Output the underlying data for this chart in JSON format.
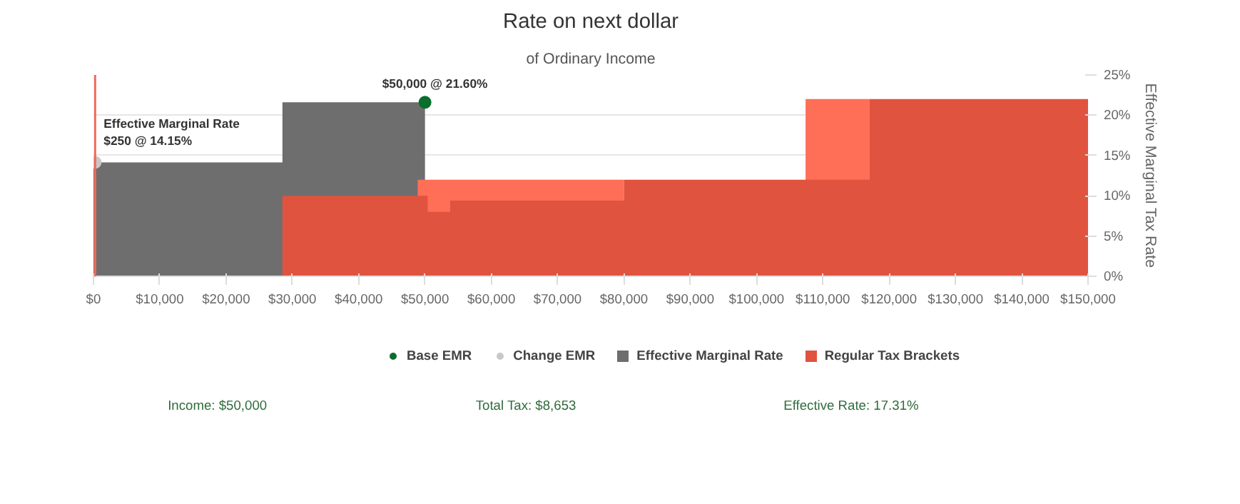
{
  "chart_data": {
    "type": "area",
    "title": "Rate on next dollar",
    "subtitle": "of Ordinary Income",
    "ylabel": "Effective Marginal Tax Rate",
    "xlim": [
      0,
      150000
    ],
    "ylim": [
      0,
      25
    ],
    "xticks": [
      {
        "value": 0,
        "label": "$0"
      },
      {
        "value": 10000,
        "label": "$10,000"
      },
      {
        "value": 20000,
        "label": "$20,000"
      },
      {
        "value": 30000,
        "label": "$30,000"
      },
      {
        "value": 40000,
        "label": "$40,000"
      },
      {
        "value": 50000,
        "label": "$50,000"
      },
      {
        "value": 60000,
        "label": "$60,000"
      },
      {
        "value": 70000,
        "label": "$70,000"
      },
      {
        "value": 80000,
        "label": "$80,000"
      },
      {
        "value": 90000,
        "label": "$90,000"
      },
      {
        "value": 100000,
        "label": "$100,000"
      },
      {
        "value": 110000,
        "label": "$110,000"
      },
      {
        "value": 120000,
        "label": "$120,000"
      },
      {
        "value": 130000,
        "label": "$130,000"
      },
      {
        "value": 140000,
        "label": "$140,000"
      },
      {
        "value": 150000,
        "label": "$150,000"
      }
    ],
    "yticks": [
      {
        "value": 0,
        "label": "0%"
      },
      {
        "value": 5,
        "label": "5%"
      },
      {
        "value": 10,
        "label": "10%"
      },
      {
        "value": 15,
        "label": "15%"
      },
      {
        "value": 20,
        "label": "20%"
      },
      {
        "value": 25,
        "label": "25%"
      }
    ],
    "grid": "y",
    "legend": "bottom",
    "series": [
      {
        "name": "Effective Marginal Rate",
        "color": "#6e6e6e",
        "x": [
          0,
          28500,
          28500,
          50000
        ],
        "values": [
          14.15,
          14.15,
          21.6,
          21.6
        ]
      },
      {
        "color": "#ff6e56",
        "x": [
          48900,
          80000
        ],
        "values": [
          12,
          12
        ]
      },
      {
        "color": "#ff6e56",
        "x": [
          107400,
          117000
        ],
        "values": [
          22,
          22
        ]
      },
      {
        "name": "Regular Tax Brackets",
        "color": "#e0533f",
        "x": [
          28500,
          50400,
          50400,
          53800,
          53800,
          80000,
          80000,
          117000,
          117000,
          150000
        ],
        "values": [
          10,
          10,
          8,
          8,
          9.4,
          9.4,
          12,
          12,
          22,
          22
        ]
      },
      {
        "name": "Base EMR",
        "type": "scatter",
        "marker": "circle",
        "color": "#0b6e2c",
        "x": [
          50000
        ],
        "values": [
          21.6
        ]
      },
      {
        "name": "Change EMR",
        "type": "scatter",
        "marker": "circle",
        "color": "#c8c8c8",
        "x": [
          250
        ],
        "values": [
          14.15
        ]
      }
    ],
    "ref_lines": [
      {
        "axis": "x",
        "value": 250,
        "color": "#f06a5a"
      }
    ],
    "annotations": [
      {
        "text": "Effective Marginal Rate\n$250 @ 14.15%",
        "x": 250,
        "y": 14.15
      },
      {
        "text": "$50,000 @ 21.60%",
        "x": 50000,
        "y": 21.6
      },
      "Income: $50,000",
      "Total Tax: $8,653",
      "Effective Rate: 17.31%"
    ]
  }
}
